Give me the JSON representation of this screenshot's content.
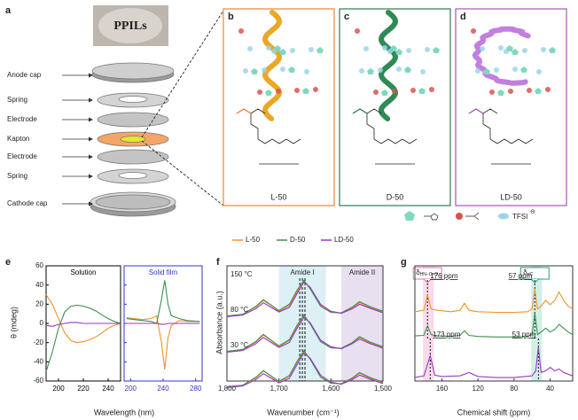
{
  "figure": {
    "panel_a": {
      "label": "a",
      "photo_text": "PPILs",
      "parts": [
        "Anode cap",
        "Spring",
        "Electrode",
        "Kapton",
        "Electrode",
        "Spring",
        "Cathode cap"
      ]
    },
    "panels_bcd": [
      {
        "label": "b",
        "name": "L-50",
        "color": "#e8843a",
        "helix": "#e9a825"
      },
      {
        "label": "c",
        "name": "D-50",
        "color": "#2e7d4f",
        "helix": "#2f8a55"
      },
      {
        "label": "d",
        "name": "LD-50",
        "color": "#a855b8",
        "helix": "#c27ee0"
      }
    ],
    "key": {
      "anion": "TFSI",
      "charge": "⊖"
    }
  },
  "legend": [
    {
      "name": "L-50",
      "color": "#f0922b"
    },
    {
      "name": "D-50",
      "color": "#3f8f4f"
    },
    {
      "name": "LD-50",
      "color": "#9b35c8"
    }
  ],
  "chart_data": [
    {
      "type": "line",
      "panel_label": "e",
      "ylabel": "θ (mdeg)",
      "xlabel": "Wavelength (nm)",
      "ylim": [
        -60,
        60
      ],
      "yticks": [
        -60,
        -40,
        -20,
        0,
        20,
        40,
        60
      ],
      "subplots": [
        {
          "title": "Solution",
          "title_color": "#000000",
          "frame_color": "#000000",
          "xlim": [
            190,
            250
          ],
          "xticks": [
            200,
            220,
            240
          ],
          "x": [
            190,
            195,
            200,
            205,
            210,
            215,
            220,
            225,
            230,
            235,
            240,
            245,
            250
          ],
          "series": [
            {
              "color": "#f0922b",
              "values": [
                30,
                20,
                5,
                -10,
                -18,
                -20,
                -19,
                -17,
                -14,
                -10,
                -5,
                -2,
                0
              ]
            },
            {
              "color": "#3f8f4f",
              "values": [
                -50,
                -30,
                -5,
                12,
                18,
                19,
                18,
                16,
                13,
                9,
                5,
                2,
                0
              ]
            },
            {
              "color": "#9b35c8",
              "values": [
                -2,
                -3,
                -1,
                0,
                1,
                1,
                0,
                0,
                0,
                0,
                0,
                0,
                0
              ]
            }
          ]
        },
        {
          "title": "Solid film",
          "title_color": "#3333cc",
          "frame_color": "#3333cc",
          "xlim": [
            192,
            288
          ],
          "xticks": [
            200,
            240,
            280
          ],
          "x": [
            195,
            205,
            215,
            225,
            232,
            238,
            242,
            246,
            250,
            260,
            270,
            285
          ],
          "series": [
            {
              "color": "#f0922b",
              "values": [
                6,
                5,
                4,
                5,
                8,
                -20,
                -48,
                -15,
                -2,
                3,
                2,
                2
              ]
            },
            {
              "color": "#3f8f4f",
              "values": [
                5,
                4,
                3,
                2,
                0,
                25,
                45,
                20,
                8,
                5,
                3,
                2
              ]
            },
            {
              "color": "#9b35c8",
              "values": [
                0,
                0,
                0,
                0,
                0,
                -1,
                -1,
                0,
                0,
                0,
                0,
                0
              ]
            }
          ]
        }
      ]
    },
    {
      "type": "line",
      "panel_label": "f",
      "ylabel": "Absorbance (a.u.)",
      "xlabel": "Wavenumber (cm⁻¹)",
      "xlim": [
        1800,
        1500
      ],
      "xticks": [
        {
          "value": 1800,
          "label": "1,800"
        },
        {
          "value": 1700,
          "label": "1,700"
        },
        {
          "value": 1600,
          "label": "1,600"
        },
        {
          "value": 1500,
          "label": "1,500"
        }
      ],
      "ylim": [
        0,
        1.1
      ],
      "bands": [
        {
          "label": "Amide I",
          "range": [
            1700,
            1610
          ],
          "color": "#dcf0f5"
        },
        {
          "label": "Amide II",
          "range": [
            1580,
            1500
          ],
          "color": "#e8e0f0"
        }
      ],
      "dashed_x": [
        1660,
        1655,
        1650
      ],
      "x": [
        1800,
        1770,
        1745,
        1730,
        1715,
        1700,
        1680,
        1665,
        1652,
        1640,
        1620,
        1600,
        1580,
        1560,
        1545,
        1525,
        1500
      ],
      "subplots": [
        {
          "title": "150 °C",
          "series": [
            {
              "color": "#f0922b",
              "values": [
                0.08,
                0.12,
                0.3,
                0.48,
                0.35,
                0.2,
                0.35,
                0.7,
                0.98,
                0.8,
                0.35,
                0.18,
                0.15,
                0.28,
                0.42,
                0.3,
                0.18
              ]
            },
            {
              "color": "#3f8f4f",
              "values": [
                0.08,
                0.12,
                0.32,
                0.5,
                0.36,
                0.22,
                0.38,
                0.75,
                1,
                0.78,
                0.33,
                0.17,
                0.16,
                0.3,
                0.45,
                0.32,
                0.2
              ]
            },
            {
              "color": "#9b35c8",
              "values": [
                0.06,
                0.1,
                0.26,
                0.42,
                0.3,
                0.18,
                0.3,
                0.66,
                0.95,
                0.82,
                0.38,
                0.2,
                0.15,
                0.26,
                0.38,
                0.28,
                0.16
              ]
            }
          ]
        },
        {
          "title": "80 °C",
          "series": [
            {
              "color": "#f0922b",
              "values": [
                0.08,
                0.12,
                0.31,
                0.5,
                0.36,
                0.2,
                0.36,
                0.72,
                1,
                0.8,
                0.34,
                0.18,
                0.15,
                0.29,
                0.44,
                0.3,
                0.18
              ]
            },
            {
              "color": "#3f8f4f",
              "values": [
                0.08,
                0.13,
                0.33,
                0.52,
                0.37,
                0.22,
                0.38,
                0.76,
                1.02,
                0.79,
                0.33,
                0.17,
                0.16,
                0.3,
                0.46,
                0.32,
                0.2
              ]
            },
            {
              "color": "#9b35c8",
              "values": [
                0.06,
                0.1,
                0.27,
                0.44,
                0.31,
                0.18,
                0.31,
                0.68,
                0.96,
                0.82,
                0.37,
                0.2,
                0.15,
                0.27,
                0.4,
                0.28,
                0.16
              ]
            }
          ]
        },
        {
          "title": "30 °C",
          "series": [
            {
              "color": "#f0922b",
              "values": [
                0.08,
                0.12,
                0.3,
                0.49,
                0.35,
                0.2,
                0.36,
                0.72,
                1,
                0.8,
                0.34,
                0.18,
                0.15,
                0.28,
                0.43,
                0.3,
                0.18
              ]
            },
            {
              "color": "#3f8f4f",
              "values": [
                0.08,
                0.12,
                0.32,
                0.5,
                0.36,
                0.22,
                0.37,
                0.74,
                1.01,
                0.79,
                0.33,
                0.17,
                0.16,
                0.3,
                0.45,
                0.32,
                0.2
              ]
            },
            {
              "color": "#9b35c8",
              "values": [
                0.06,
                0.1,
                0.26,
                0.42,
                0.3,
                0.18,
                0.3,
                0.66,
                0.95,
                0.82,
                0.38,
                0.2,
                0.15,
                0.26,
                0.38,
                0.28,
                0.16
              ]
            }
          ]
        }
      ]
    },
    {
      "type": "line",
      "panel_label": "g",
      "xlabel": "Chemical shift (ppm)",
      "xlim": [
        190,
        15
      ],
      "xticks": [
        160,
        120,
        80,
        40
      ],
      "ylim": [
        0,
        1.1
      ],
      "bands": [
        {
          "range": [
            181,
            169
          ],
          "color": "#f8dcea"
        },
        {
          "range": [
            61,
            49
          ],
          "color": "#d2efe6"
        }
      ],
      "markers": [
        {
          "symbol": "δ",
          "sub": "HN–C=O",
          "x": 176,
          "color": "#e070b0"
        },
        {
          "symbol": "δ",
          "sub": "αC",
          "x": 57,
          "color": "#2a9a8a"
        }
      ],
      "subplots": [
        {
          "x": [
            190,
            180,
            176,
            172,
            165,
            150,
            140,
            135,
            130,
            120,
            100,
            80,
            65,
            60,
            57,
            54,
            50,
            45,
            40,
            35,
            30,
            25,
            20,
            15
          ],
          "annotations": [
            {
              "label": "176 ppm",
              "x": 176
            },
            {
              "label": "57 ppm",
              "x": 57
            }
          ],
          "series": [
            {
              "color": "#f0922b",
              "values": [
                0.1,
                0.15,
                0.7,
                0.2,
                0.15,
                0.1,
                0.15,
                0.4,
                0.15,
                0.1,
                0.08,
                0.08,
                0.1,
                0.2,
                0.9,
                0.2,
                0.3,
                0.5,
                0.35,
                0.5,
                0.8,
                0.5,
                0.3,
                0.2
              ]
            }
          ]
        },
        {
          "x": [
            190,
            180,
            176,
            172,
            165,
            150,
            140,
            135,
            130,
            120,
            100,
            80,
            65,
            60,
            57,
            54,
            50,
            45,
            40,
            35,
            30,
            25,
            20,
            15
          ],
          "series": [
            {
              "color": "#3f8f4f",
              "values": [
                0.1,
                0.12,
                0.5,
                0.15,
                0.1,
                0.08,
                0.12,
                0.3,
                0.12,
                0.08,
                0.06,
                0.06,
                0.08,
                0.15,
                1,
                0.15,
                0.25,
                0.4,
                0.25,
                0.35,
                0.55,
                0.4,
                0.25,
                0.15
              ]
            }
          ]
        },
        {
          "x": [
            190,
            180,
            173,
            168,
            160,
            140,
            130,
            120,
            100,
            80,
            60,
            56,
            53,
            50,
            45,
            40,
            35,
            30,
            25,
            15
          ],
          "annotations": [
            {
              "label": "173 ppm",
              "x": 173
            },
            {
              "label": "53 ppm",
              "x": 53
            }
          ],
          "series": [
            {
              "color": "#9b35c8",
              "values": [
                0.05,
                0.1,
                0.7,
                0.12,
                0.08,
                0.1,
                0.2,
                0.08,
                0.05,
                0.05,
                0.1,
                0.25,
                0.95,
                0.2,
                0.25,
                0.35,
                0.25,
                0.3,
                0.2,
                0.1
              ]
            }
          ]
        }
      ]
    }
  ]
}
